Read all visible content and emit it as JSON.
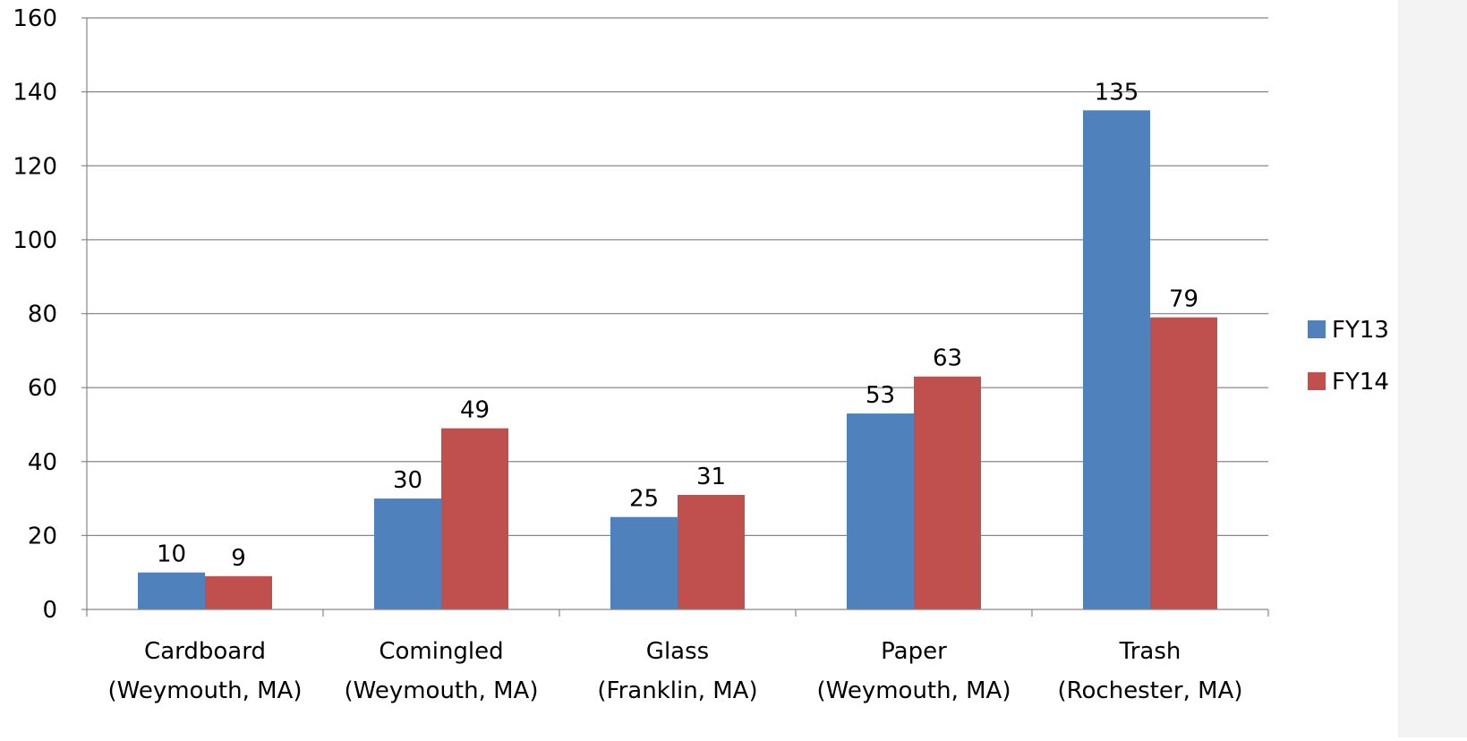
{
  "chart_data": {
    "type": "bar",
    "title": "",
    "xlabel": "",
    "ylabel": "",
    "categories": [
      [
        "Cardboard",
        "(Weymouth, MA)"
      ],
      [
        "Comingled",
        "(Weymouth, MA)"
      ],
      [
        "Glass",
        "(Franklin, MA)"
      ],
      [
        "Paper",
        "(Weymouth, MA)"
      ],
      [
        "Trash",
        "(Rochester, MA)"
      ]
    ],
    "series": [
      {
        "name": "FY13",
        "color": "#4f81bd",
        "values": [
          10,
          30,
          25,
          53,
          135
        ]
      },
      {
        "name": "FY14",
        "color": "#c0504d",
        "values": [
          9,
          49,
          31,
          63,
          79
        ]
      }
    ],
    "ylim": [
      0,
      160
    ],
    "yticks": [
      0,
      20,
      40,
      60,
      80,
      100,
      120,
      140,
      160
    ],
    "grid": true,
    "legend_position": "right",
    "data_labels": true
  }
}
